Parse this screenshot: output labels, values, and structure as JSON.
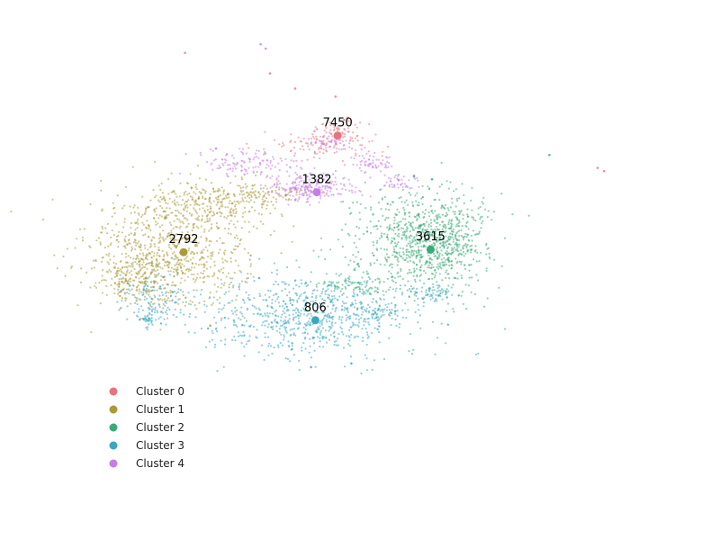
{
  "chart_data": {
    "type": "scatter",
    "title": "",
    "xlabel": "",
    "ylabel": "",
    "grid": false,
    "axes_visible": false,
    "legend_placement": "bottom-left",
    "xlim": [
      0,
      100
    ],
    "ylim": [
      0,
      100
    ],
    "series": [
      {
        "name": "Cluster 0",
        "color": "#e8737f",
        "centroid": {
          "x": 46.9,
          "y": 74.9,
          "label": "7450"
        },
        "regions": [
          {
            "cx": 44.0,
            "cy": 72.8,
            "sx": 4.5,
            "sy": 1.4,
            "n": 90
          },
          {
            "cx": 47.5,
            "cy": 75.3,
            "sx": 1.8,
            "sy": 1.4,
            "n": 60
          }
        ],
        "outliers": [
          [
            25.7,
            90.2
          ],
          [
            37.5,
            86.4
          ],
          [
            41.0,
            83.6
          ],
          [
            46.6,
            82.1
          ],
          [
            48.3,
            78.2
          ],
          [
            47.8,
            77.8
          ],
          [
            83.0,
            68.9
          ],
          [
            83.9,
            68.3
          ]
        ]
      },
      {
        "name": "Cluster 1",
        "color": "#a99a3a",
        "centroid": {
          "x": 25.5,
          "y": 53.3,
          "label": "2792"
        },
        "regions": [
          {
            "cx": 23.5,
            "cy": 53.5,
            "sx": 5.5,
            "sy": 5.0,
            "n": 750
          },
          {
            "cx": 29.5,
            "cy": 62.8,
            "sx": 4.0,
            "sy": 2.2,
            "n": 250
          },
          {
            "cx": 36.5,
            "cy": 64.2,
            "sx": 3.0,
            "sy": 1.2,
            "n": 90
          },
          {
            "cx": 19.0,
            "cy": 48.5,
            "sx": 2.5,
            "sy": 2.5,
            "n": 200
          }
        ],
        "outliers": [
          [
            29.2,
            39.7
          ],
          [
            17.5,
            48.0
          ]
        ]
      },
      {
        "name": "Cluster 2",
        "color": "#3aab78",
        "centroid": {
          "x": 59.8,
          "y": 53.8,
          "label": "3615"
        },
        "regions": [
          {
            "cx": 58.5,
            "cy": 55.0,
            "sx": 4.5,
            "sy": 5.0,
            "n": 750
          },
          {
            "cx": 62.5,
            "cy": 56.0,
            "sx": 2.5,
            "sy": 3.5,
            "n": 200
          },
          {
            "cx": 49.0,
            "cy": 47.2,
            "sx": 3.0,
            "sy": 0.8,
            "n": 80
          }
        ],
        "outliers": [
          [
            76.3,
            71.3
          ],
          [
            60.0,
            66.8
          ],
          [
            57.5,
            67.3
          ]
        ]
      },
      {
        "name": "Cluster 3",
        "color": "#38a8be",
        "centroid": {
          "x": 43.8,
          "y": 40.7,
          "label": "806"
        },
        "regions": [
          {
            "cx": 42.5,
            "cy": 41.5,
            "sx": 7.0,
            "sy": 3.8,
            "n": 750
          },
          {
            "cx": 22.0,
            "cy": 44.5,
            "sx": 2.5,
            "sy": 2.5,
            "n": 120
          },
          {
            "cx": 21.0,
            "cy": 41.0,
            "sx": 1.0,
            "sy": 0.8,
            "n": 40
          },
          {
            "cx": 52.8,
            "cy": 42.5,
            "sx": 1.5,
            "sy": 0.8,
            "n": 50
          },
          {
            "cx": 59.8,
            "cy": 46.0,
            "sx": 1.8,
            "sy": 0.9,
            "n": 60
          }
        ],
        "outliers": [
          [
            43.2,
            32.0
          ],
          [
            48.8,
            32.7
          ],
          [
            36.0,
            48.5
          ]
        ]
      },
      {
        "name": "Cluster 4",
        "color": "#c77ce8",
        "centroid": {
          "x": 44.0,
          "y": 64.4,
          "label": "1382"
        },
        "regions": [
          {
            "cx": 43.0,
            "cy": 65.2,
            "sx": 3.0,
            "sy": 1.3,
            "n": 220
          },
          {
            "cx": 35.5,
            "cy": 69.8,
            "sx": 3.8,
            "sy": 1.2,
            "n": 120
          },
          {
            "cx": 51.5,
            "cy": 70.2,
            "sx": 1.5,
            "sy": 1.0,
            "n": 60
          },
          {
            "cx": 55.2,
            "cy": 66.2,
            "sx": 1.2,
            "sy": 0.8,
            "n": 40
          },
          {
            "cx": 46.0,
            "cy": 73.5,
            "sx": 2.0,
            "sy": 1.2,
            "n": 40
          }
        ],
        "outliers": [
          [
            36.2,
            91.8
          ],
          [
            36.9,
            91.0
          ],
          [
            30.0,
            72.5
          ],
          [
            57.5,
            67.5
          ]
        ]
      }
    ]
  },
  "legend": {
    "items": [
      {
        "label": "Cluster 0",
        "color": "#e8737f"
      },
      {
        "label": "Cluster 1",
        "color": "#a99a3a"
      },
      {
        "label": "Cluster 2",
        "color": "#3aab78"
      },
      {
        "label": "Cluster 3",
        "color": "#38a8be"
      },
      {
        "label": "Cluster 4",
        "color": "#c77ce8"
      }
    ]
  }
}
